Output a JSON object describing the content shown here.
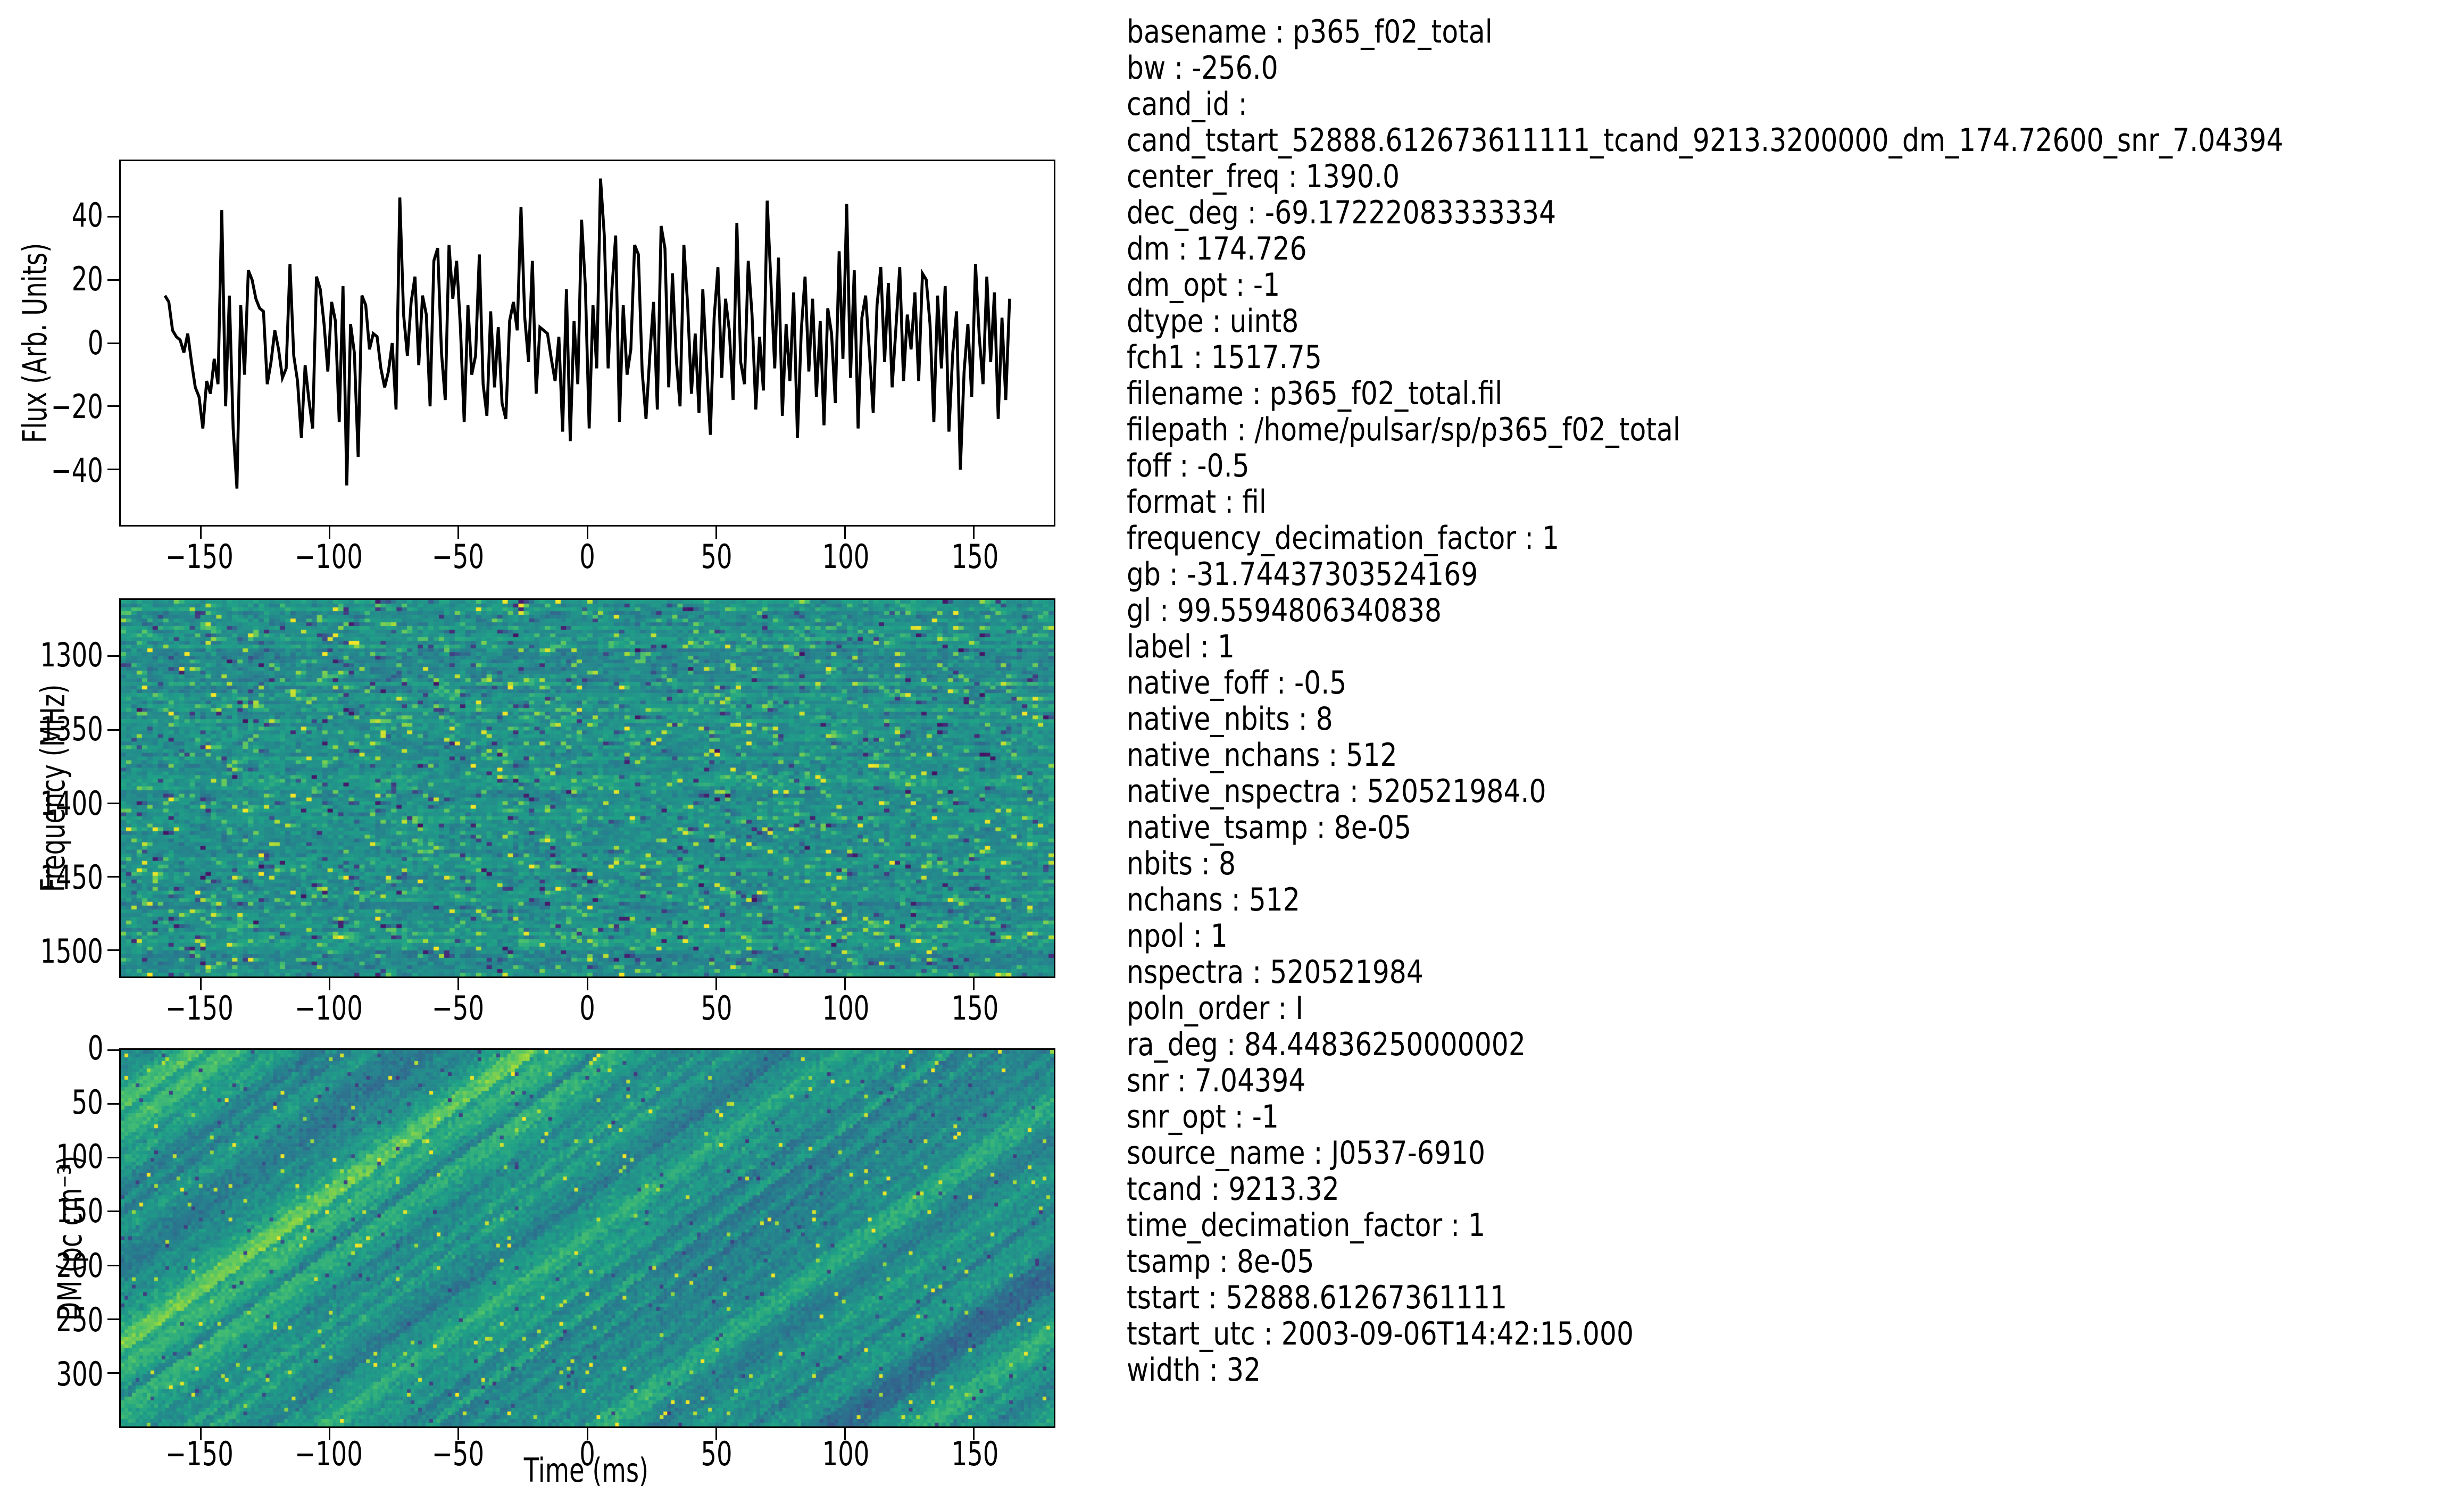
{
  "figure": {
    "background_color": "#ffffff",
    "text_color": "#000000",
    "line_color": "#000000",
    "colormap": "viridis",
    "viridis_stops": [
      "#440154",
      "#46327e",
      "#365c8d",
      "#277f8e",
      "#1fa187",
      "#4ac16d",
      "#a0da39",
      "#fde725"
    ]
  },
  "chart_data": [
    {
      "id": "flux",
      "type": "line",
      "ylabel": "Flux (Arb. Units)",
      "x_range": [
        -181,
        181
      ],
      "y_top": 57.5,
      "y_bottom": -57.5,
      "xticks": [
        -150,
        -100,
        -50,
        0,
        50,
        100,
        150
      ],
      "yticks": [
        40,
        20,
        0,
        -20,
        -40
      ],
      "x_start": -163.84,
      "x_end": 163.84,
      "line_color": "#000000",
      "values": [
        15,
        13,
        4,
        2,
        1,
        -3,
        3,
        -6,
        -14,
        -17,
        -27,
        -12,
        -16,
        -5,
        -13,
        42,
        -20,
        15,
        -27,
        -46,
        12,
        -10,
        23,
        20,
        14,
        11,
        10,
        -13,
        -6,
        4,
        -2,
        -11,
        -8,
        25,
        -4,
        -12,
        -30,
        -7,
        -18,
        -27,
        21,
        17,
        6,
        -9,
        13,
        7,
        -25,
        18,
        -45,
        6,
        -3,
        -36,
        15,
        12,
        -2,
        3,
        2,
        -8,
        -14,
        -9,
        0,
        -21,
        46,
        9,
        -4,
        13,
        21,
        -7,
        15,
        9,
        -20,
        26,
        30,
        -3,
        -18,
        31,
        14,
        26,
        5,
        -25,
        12,
        -10,
        -4,
        28,
        -13,
        -23,
        10,
        -14,
        5,
        -19,
        -24,
        7,
        13,
        4,
        43,
        8,
        -6,
        26,
        -16,
        5,
        4,
        3,
        -5,
        -12,
        2,
        -28,
        17,
        -31,
        7,
        -13,
        39,
        18,
        -27,
        12,
        -8,
        52,
        34,
        -8,
        17,
        34,
        -25,
        12,
        -10,
        -2,
        31,
        28,
        -9,
        -24,
        -4,
        13,
        -21,
        37,
        30,
        -14,
        22,
        -5,
        -20,
        31,
        12,
        -16,
        3,
        -22,
        17,
        -7,
        -29,
        8,
        24,
        -11,
        14,
        4,
        -18,
        38,
        -6,
        -13,
        26,
        9,
        -21,
        2,
        -15,
        45,
        19,
        -8,
        27,
        -23,
        6,
        -12,
        16,
        -30,
        4,
        21,
        -9,
        14,
        -17,
        7,
        -26,
        11,
        3,
        -19,
        29,
        -5,
        44,
        -11,
        23,
        -27,
        8,
        15,
        -3,
        -22,
        12,
        24,
        -6,
        19,
        -14,
        5,
        24,
        -12,
        9,
        -2,
        16,
        -12,
        22,
        20,
        6,
        -25,
        15,
        -8,
        18,
        -28,
        -3,
        10,
        -40,
        -9,
        6,
        -17,
        25,
        2,
        -13,
        21,
        -6,
        16,
        -24,
        8,
        -18,
        14
      ]
    },
    {
      "id": "freq",
      "type": "heatmap",
      "ylabel": "Frequency (MHz)",
      "x_range": [
        -181,
        181
      ],
      "y_top": 1261.75,
      "y_bottom": 1517.75,
      "xticks": [
        -150,
        -100,
        -50,
        0,
        50,
        100,
        150
      ],
      "yticks": [
        1300,
        1350,
        1400,
        1450,
        1500
      ],
      "description": "dynamic spectrum of random noise, viridis colormap, fine horizontal channel speckle",
      "noise": {
        "style": "speckle",
        "cols": 176,
        "rows": 101,
        "seed": 20317
      }
    },
    {
      "id": "dm",
      "type": "heatmap",
      "xlabel": "Time (ms)",
      "ylabel": "DM (pc cm⁻³)",
      "x_range": [
        -181,
        181
      ],
      "y_top": 0,
      "y_bottom": 349.45,
      "xticks": [
        -150,
        -100,
        -50,
        0,
        50,
        100,
        150
      ],
      "yticks": [
        0,
        50,
        100,
        150,
        200,
        250,
        300
      ],
      "description": "DM-time map of random noise with diagonal streaks running lower-left to upper-right",
      "noise": {
        "style": "streaks",
        "cols": 251,
        "rows": 101,
        "seed": 911,
        "slope": 0.72,
        "band_width": 2.6
      }
    }
  ],
  "metadata_panel": {
    "lines": [
      "basename : p365_f02_total",
      "bw : -256.0",
      "cand_id :",
      "cand_tstart_52888.612673611111_tcand_9213.3200000_dm_174.72600_snr_7.04394",
      "center_freq : 1390.0",
      "dec_deg : -69.17222083333334",
      "dm : 174.726",
      "dm_opt : -1",
      "dtype : uint8",
      "fch1 : 1517.75",
      "filename : p365_f02_total.fil",
      "filepath : /home/pulsar/sp/p365_f02_total",
      "foff : -0.5",
      "format : fil",
      "frequency_decimation_factor : 1",
      "gb : -31.74437303524169",
      "gl : 99.5594806340838",
      "label : 1",
      "native_foff : -0.5",
      "native_nbits : 8",
      "native_nchans : 512",
      "native_nspectra : 520521984.0",
      "native_tsamp : 8e-05",
      "nbits : 8",
      "nchans : 512",
      "npol : 1",
      "nspectra : 520521984",
      "poln_order : I",
      "ra_deg : 84.44836250000002",
      "snr : 7.04394",
      "snr_opt : -1",
      "source_name : J0537-6910",
      "tcand : 9213.32",
      "time_decimation_factor : 1",
      "tsamp : 8e-05",
      "tstart : 52888.61267361111",
      "tstart_utc : 2003-09-06T14:42:15.000",
      "width : 32"
    ]
  }
}
